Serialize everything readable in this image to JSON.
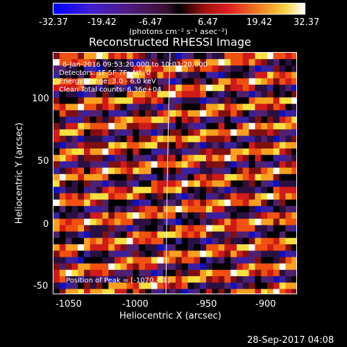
{
  "colorbar": {
    "ticks": [
      "-32.37",
      "-19.42",
      "-6.47",
      "6.47",
      "19.42",
      "32.37"
    ],
    "unit_label": "(photons cm⁻² s⁻¹ asec⁻²)"
  },
  "title": "Reconstructed RHESSI Image",
  "info": {
    "line1": "6-Jan-2016 09:53:20.000 to 10:03:20.000",
    "line2": "Detectors: 1F 5F 7F; Att: 0",
    "line3": "Energy Range: 3.0 - 6.0 keV",
    "line4": "Clean    Total counts: 6.36e+04",
    "peak": "Position of Peak = [-1070,-51]"
  },
  "axes": {
    "xlabel": "Heliocentric X (arcsec)",
    "ylabel": "Heliocentric Y (arcsec)",
    "xticks": [
      "-1050",
      "-1000",
      "-950",
      "-900"
    ],
    "yticks": [
      "100",
      "50",
      "0",
      "-50"
    ]
  },
  "timestamp": "28-Sep-2017 04:08"
}
